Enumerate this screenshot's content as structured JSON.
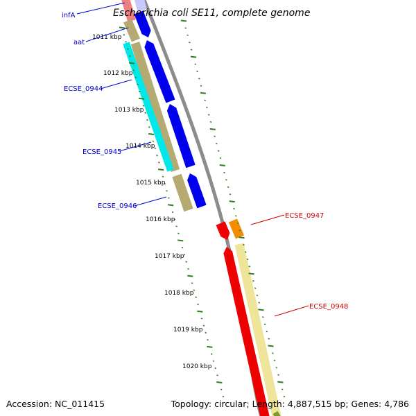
{
  "title": "Escherichia coli SE11, complete genome",
  "footer": {
    "accession": "Accession: NC_011415",
    "summary": "Topology: circular; Length: 4,887,515 bp; Genes: 4,786"
  },
  "colors": {
    "backbone": "#8c8c8c",
    "tick": "#2e7d1f",
    "blue_gene": "#0000ee",
    "cyan_gene": "#00e8e8",
    "tan_band": "#b5aa72",
    "red_gene": "#ee0000",
    "orange_gene": "#f28c00",
    "pale_band": "#eee49a",
    "label_blue": "#0000cc",
    "label_red": "#cc0000",
    "pink_gene": "#f08080",
    "lavender_gene": "#c8c8ff",
    "olive_band": "#7a9a2a"
  },
  "ticks": [
    "1011 kbp",
    "1012 kbp",
    "1013 kbp",
    "1014 kbp",
    "1015 kbp",
    "1016 kbp",
    "1017 kbp",
    "1018 kbp",
    "1019 kbp",
    "1020 kbp"
  ],
  "genes_left": [
    "infA",
    "aat",
    "ECSE_0944",
    "ECSE_0945",
    "ECSE_0946"
  ],
  "genes_right": [
    "ECSE_0947",
    "ECSE_0948"
  ]
}
